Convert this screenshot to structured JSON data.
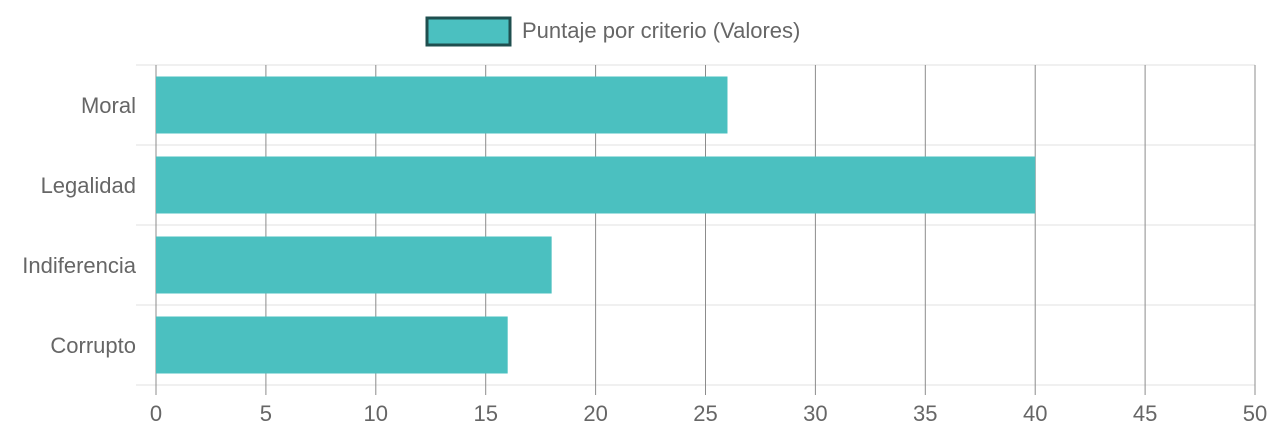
{
  "chart_data": {
    "type": "bar",
    "orientation": "horizontal",
    "categories": [
      "Moral",
      "Legalidad",
      "Indiferencia",
      "Corrupto"
    ],
    "series": [
      {
        "name": "Puntaje por criterio (Valores)",
        "values": [
          26,
          40,
          18,
          16
        ],
        "color": "#4bc0c0"
      }
    ],
    "xlim": [
      0,
      50
    ],
    "xticks": [
      0,
      5,
      10,
      15,
      20,
      25,
      30,
      35,
      40,
      45,
      50
    ],
    "grid": true,
    "legend_position": "top-center"
  },
  "colors": {
    "bar_fill": "#4bc0c0",
    "legend_border": "#1f4f4f",
    "vertical_grid": "#8c8c8c",
    "horizontal_grid": "#e0e0e0",
    "text": "#666666"
  }
}
